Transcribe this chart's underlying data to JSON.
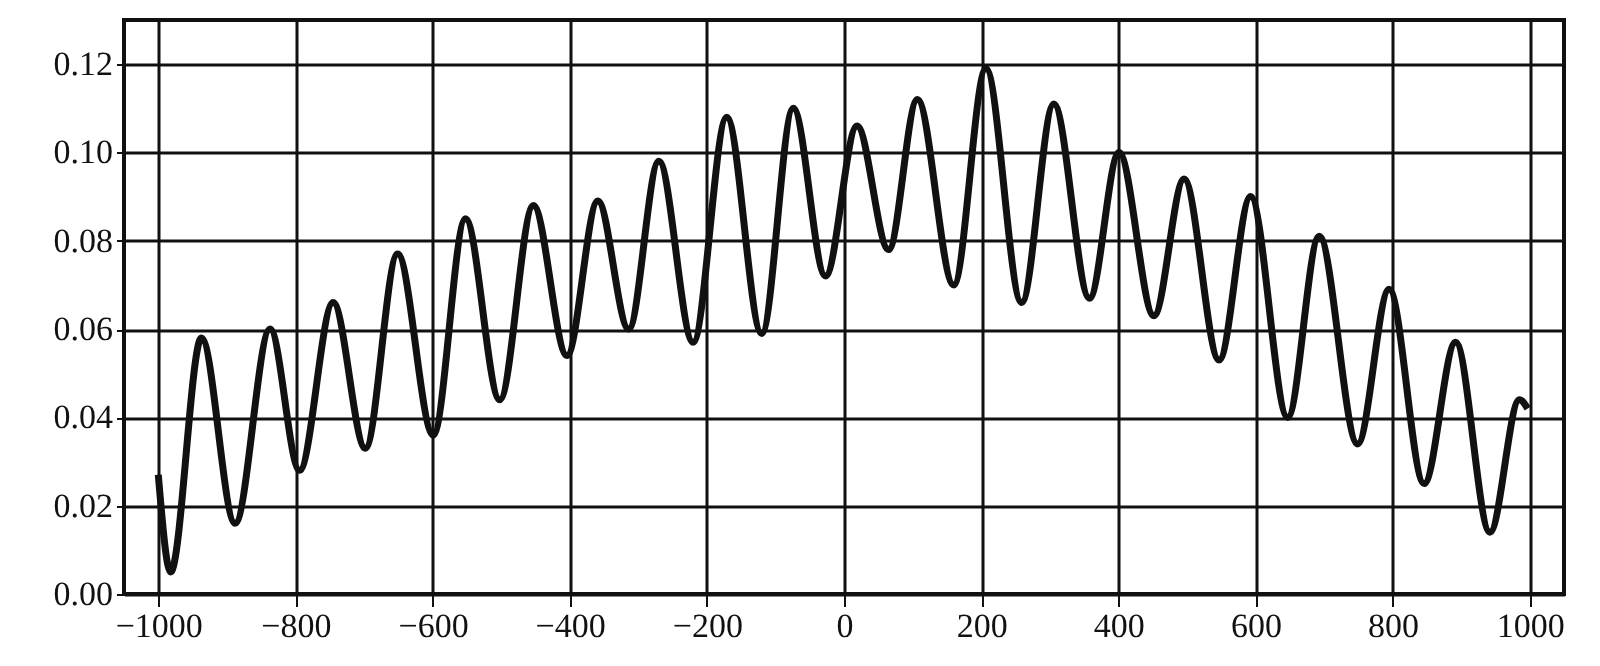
{
  "chart_data": {
    "type": "line",
    "x": [
      -1000,
      -982,
      -937,
      -888,
      -837,
      -794,
      -745,
      -698,
      -651,
      -599,
      -552,
      -502,
      -453,
      -404,
      -359,
      -314,
      -270,
      -220,
      -171,
      -120,
      -74,
      -27,
      19,
      65,
      107,
      160,
      207,
      259,
      306,
      358,
      401,
      452,
      496,
      547,
      593,
      647,
      693,
      749,
      795,
      846,
      892,
      942,
      985,
      997
    ],
    "series": [
      {
        "color": "#111111",
        "values": [
          0.027,
          0.005,
          0.058,
          0.016,
          0.06,
          0.028,
          0.066,
          0.033,
          0.077,
          0.036,
          0.085,
          0.044,
          0.088,
          0.054,
          0.089,
          0.06,
          0.098,
          0.057,
          0.108,
          0.059,
          0.11,
          0.072,
          0.106,
          0.078,
          0.112,
          0.07,
          0.119,
          0.066,
          0.111,
          0.067,
          0.1,
          0.063,
          0.094,
          0.053,
          0.09,
          0.04,
          0.081,
          0.034,
          0.069,
          0.025,
          0.057,
          0.014,
          0.044,
          0.042
        ]
      }
    ],
    "xlim": [
      -1050,
      1050
    ],
    "xticks": [
      -1000,
      -800,
      -600,
      -400,
      -200,
      0,
      200,
      400,
      600,
      800,
      1000
    ],
    "ylim": [
      0,
      0.13
    ],
    "yticks": [
      {
        "value": 0,
        "label": "0.00"
      },
      {
        "value": 0.02,
        "label": "0.02"
      },
      {
        "value": 0.04,
        "label": "0.04"
      },
      {
        "value": 0.06,
        "label": "0.06"
      },
      {
        "value": 0.08,
        "label": "0.08"
      },
      {
        "value": 0.1,
        "label": "0.10"
      },
      {
        "value": 0.12,
        "label": "0.12"
      }
    ],
    "grid": true,
    "line_style": "solid",
    "marker": "none"
  }
}
